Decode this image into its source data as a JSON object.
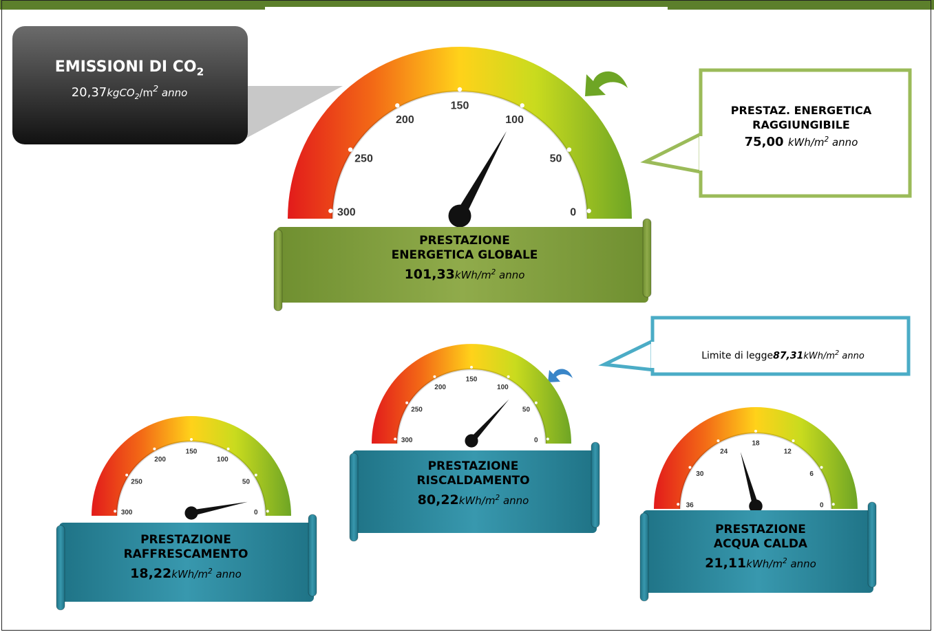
{
  "co2": {
    "title": "EMISSIONI DI CO",
    "title_sub": "2",
    "value": "20,37",
    "unit_pre": "kgCO",
    "unit_sub": "2",
    "unit_post": "/m",
    "unit_sup": "2",
    "unit_end": " anno"
  },
  "global": {
    "line1": "PRESTAZIONE",
    "line2": "ENERGETICA GLOBALE",
    "value": "101,33",
    "gauge_value": 101.33,
    "ticks": [
      "300",
      "250",
      "200",
      "150",
      "100",
      "50",
      "0"
    ]
  },
  "raggiungibile": {
    "line1": "PRESTAZ. ENERGETICA",
    "line2": "RAGGIUNGIBILE",
    "value": "75,00"
  },
  "limite": {
    "label": "Limite di legge",
    "value": "87,31"
  },
  "riscaldamento": {
    "line1": "PRESTAZIONE",
    "line2": "RISCALDAMENTO",
    "value": "80,22",
    "gauge_value": 80.22,
    "ticks": [
      "300",
      "250",
      "200",
      "150",
      "100",
      "50",
      "0"
    ]
  },
  "raffrescamento": {
    "line1": "PRESTAZIONE",
    "line2": "RAFFRESCAMENTO",
    "value": "18,22",
    "gauge_value": 18.22,
    "ticks": [
      "300",
      "250",
      "200",
      "150",
      "100",
      "50",
      "0"
    ]
  },
  "acqua": {
    "line1": "PRESTAZIONE",
    "line2": "ACQUA CALDA",
    "value": "21,11",
    "gauge_value": 21.11,
    "ticks": [
      "36",
      "30",
      "24",
      "18",
      "12",
      "6",
      "0"
    ]
  },
  "unit": {
    "kwh": "kWh/m",
    "sup": "2",
    "anno": " anno"
  },
  "colors": {
    "green_dark": "#5c7f2b",
    "green_banner": "#7e9c3c",
    "teal_banner": "#2c8aa0",
    "callout_green": "#9bbb59",
    "callout_blue": "#4bacc6"
  }
}
